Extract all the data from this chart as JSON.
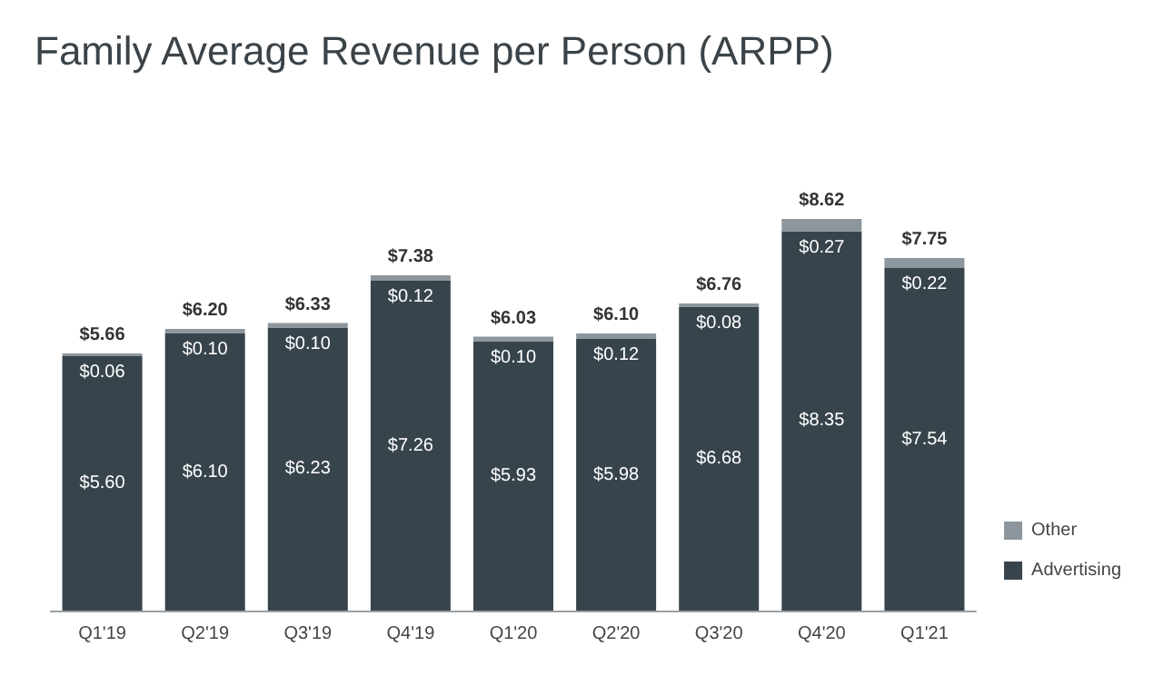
{
  "chart_data": {
    "type": "bar",
    "title": "Family Average Revenue per Person (ARPP)",
    "categories": [
      "Q1'19",
      "Q2'19",
      "Q3'19",
      "Q4'19",
      "Q1'20",
      "Q2'20",
      "Q3'20",
      "Q4'20",
      "Q1'21"
    ],
    "stacked": true,
    "legend": "bottom right",
    "series": [
      {
        "name": "Advertising",
        "color": "#37444c",
        "values": [
          5.6,
          6.1,
          6.23,
          7.26,
          5.93,
          5.98,
          6.68,
          8.35,
          7.54
        ],
        "value_labels": [
          "$5.60",
          "$6.10",
          "$6.23",
          "$7.26",
          "$5.93",
          "$5.98",
          "$6.68",
          "$8.35",
          "$7.54"
        ]
      },
      {
        "name": "Other",
        "color": "#8c969c",
        "values": [
          0.06,
          0.1,
          0.1,
          0.12,
          0.1,
          0.12,
          0.08,
          0.27,
          0.22
        ],
        "value_labels": [
          "$0.06",
          "$0.10",
          "$0.10",
          "$0.12",
          "$0.10",
          "$0.12",
          "$0.08",
          "$0.27",
          "$0.22"
        ]
      }
    ],
    "totals": [
      "$5.66",
      "$6.20",
      "$6.33",
      "$7.38",
      "$6.03",
      "$6.10",
      "$6.76",
      "$8.62",
      "$7.75"
    ]
  }
}
